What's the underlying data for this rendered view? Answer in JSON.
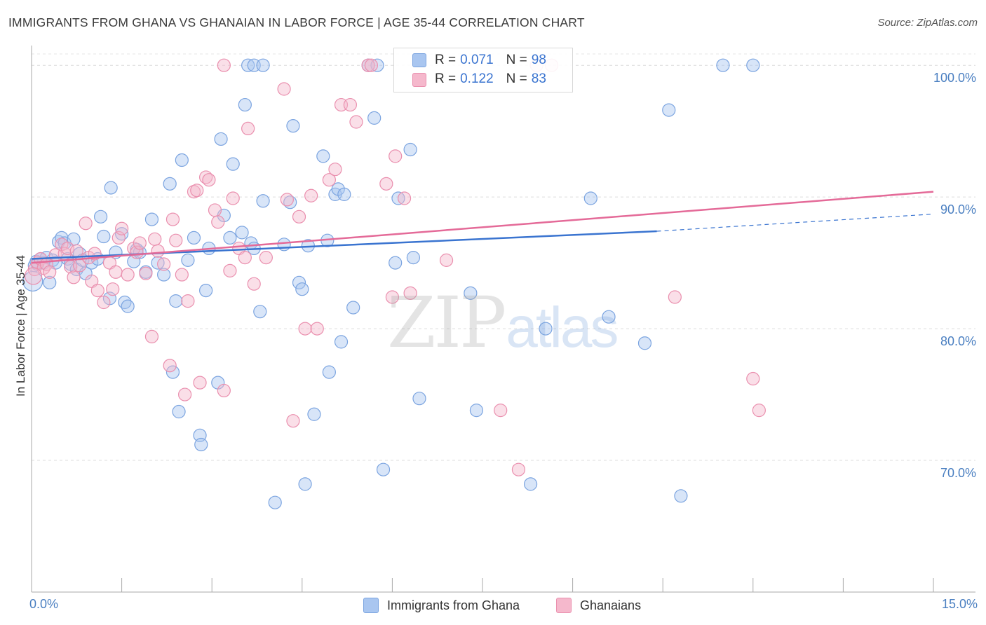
{
  "header": {
    "title": "IMMIGRANTS FROM GHANA VS GHANAIAN IN LABOR FORCE | AGE 35-44 CORRELATION CHART",
    "source": "Source: ZipAtlas.com"
  },
  "watermark": {
    "zip": "ZIP",
    "atlas": "atlas"
  },
  "legend_top": {
    "rows": [
      {
        "r_label": "R = ",
        "r_value": "0.071",
        "n_label": "N = ",
        "n_value": "98"
      },
      {
        "r_label": "R = ",
        "r_value": "0.122",
        "n_label": "N = ",
        "n_value": "83"
      }
    ]
  },
  "legend_bottom": {
    "items": [
      {
        "label": "Immigrants from Ghana"
      },
      {
        "label": "Ghanaians"
      }
    ]
  },
  "colors": {
    "blue_fill": "#a9c6f0",
    "blue_stroke": "#7ba4e0",
    "blue_line": "#3a74d0",
    "pink_fill": "#f5b8cc",
    "pink_stroke": "#ea8fae",
    "pink_line": "#e46a98",
    "grid": "#d9d9d9",
    "axis_label": "#4a7fc1"
  },
  "chart_data": {
    "type": "scatter",
    "title": "IMMIGRANTS FROM GHANA VS GHANAIAN IN LABOR FORCE | AGE 35-44 CORRELATION CHART",
    "xlabel": "",
    "ylabel": "In Labor Force | Age 35-44",
    "xlim": [
      0,
      15
    ],
    "ylim": [
      60,
      101.5
    ],
    "x_tick_labels": [
      "0.0%",
      "15.0%"
    ],
    "y_ticks": [
      70,
      80,
      90,
      100
    ],
    "y_tick_labels": [
      "70.0%",
      "80.0%",
      "90.0%",
      "100.0%"
    ],
    "grid": true,
    "legend_position": "top-center",
    "series": [
      {
        "name": "Immigrants from Ghana",
        "color": "#a9c6f0",
        "trend": {
          "x": [
            0,
            10.4
          ],
          "y": [
            85.3,
            87.4
          ],
          "extended_to": [
            15,
            88.7
          ]
        },
        "points": [
          [
            0.05,
            84.8
          ],
          [
            0.08,
            85.1
          ],
          [
            0.1,
            84.9
          ],
          [
            0.15,
            85.3
          ],
          [
            0.2,
            85.0
          ],
          [
            0.25,
            85.4
          ],
          [
            0.3,
            83.5
          ],
          [
            0.35,
            85.2
          ],
          [
            0.4,
            85.0
          ],
          [
            0.45,
            86.6
          ],
          [
            0.5,
            86.9
          ],
          [
            0.55,
            86.5
          ],
          [
            0.6,
            85.3
          ],
          [
            0.65,
            84.9
          ],
          [
            0.7,
            86.8
          ],
          [
            0.75,
            84.5
          ],
          [
            0.8,
            85.7
          ],
          [
            0.85,
            85.2
          ],
          [
            0.9,
            84.2
          ],
          [
            1.0,
            85.0
          ],
          [
            1.1,
            85.3
          ],
          [
            1.15,
            88.5
          ],
          [
            1.2,
            87.0
          ],
          [
            1.3,
            82.3
          ],
          [
            1.32,
            90.7
          ],
          [
            1.4,
            85.8
          ],
          [
            1.5,
            87.2
          ],
          [
            1.55,
            82.0
          ],
          [
            1.6,
            81.7
          ],
          [
            1.7,
            85.1
          ],
          [
            1.75,
            86.0
          ],
          [
            1.8,
            85.8
          ],
          [
            1.9,
            84.3
          ],
          [
            2.0,
            88.3
          ],
          [
            2.1,
            85.0
          ],
          [
            2.2,
            84.1
          ],
          [
            2.3,
            91.0
          ],
          [
            2.4,
            82.1
          ],
          [
            2.35,
            76.7
          ],
          [
            2.45,
            73.7
          ],
          [
            2.5,
            92.8
          ],
          [
            2.6,
            85.2
          ],
          [
            2.7,
            86.9
          ],
          [
            2.8,
            71.9
          ],
          [
            2.82,
            71.2
          ],
          [
            2.9,
            82.9
          ],
          [
            2.95,
            86.1
          ],
          [
            3.1,
            75.9
          ],
          [
            3.15,
            94.4
          ],
          [
            3.2,
            88.6
          ],
          [
            3.3,
            86.9
          ],
          [
            3.35,
            92.5
          ],
          [
            3.5,
            87.3
          ],
          [
            3.55,
            97.0
          ],
          [
            3.65,
            86.5
          ],
          [
            3.7,
            86.1
          ],
          [
            3.8,
            81.3
          ],
          [
            3.85,
            89.7
          ],
          [
            4.05,
            66.8
          ],
          [
            4.2,
            86.4
          ],
          [
            4.3,
            89.6
          ],
          [
            4.35,
            95.4
          ],
          [
            4.45,
            83.5
          ],
          [
            4.5,
            83.0
          ],
          [
            4.6,
            86.3
          ],
          [
            4.7,
            73.5
          ],
          [
            4.85,
            93.1
          ],
          [
            4.92,
            86.7
          ],
          [
            4.95,
            76.7
          ],
          [
            5.05,
            90.2
          ],
          [
            5.1,
            90.6
          ],
          [
            5.2,
            90.2
          ],
          [
            5.35,
            81.6
          ],
          [
            5.6,
            100.0
          ],
          [
            5.7,
            96.0
          ],
          [
            5.75,
            100.0
          ],
          [
            5.85,
            69.3
          ],
          [
            6.05,
            85.0
          ],
          [
            6.1,
            89.9
          ],
          [
            6.3,
            93.6
          ],
          [
            6.35,
            85.4
          ],
          [
            6.45,
            74.7
          ],
          [
            7.3,
            82.7
          ],
          [
            7.4,
            73.8
          ],
          [
            8.3,
            68.2
          ],
          [
            8.55,
            80.0
          ],
          [
            9.3,
            89.9
          ],
          [
            9.6,
            80.9
          ],
          [
            10.2,
            78.9
          ],
          [
            10.6,
            96.6
          ],
          [
            10.8,
            67.3
          ],
          [
            11.5,
            100.0
          ],
          [
            12.0,
            100.0
          ],
          [
            3.6,
            100.0
          ],
          [
            3.7,
            100.0
          ],
          [
            3.85,
            100.0
          ],
          [
            4.55,
            68.2
          ],
          [
            5.15,
            79.0
          ]
        ]
      },
      {
        "name": "Ghanaians",
        "color": "#f5b8cc",
        "trend": {
          "x": [
            0,
            15
          ],
          "y": [
            85.0,
            90.4
          ]
        },
        "points": [
          [
            0.05,
            84.5
          ],
          [
            0.1,
            85.0
          ],
          [
            0.15,
            85.3
          ],
          [
            0.2,
            84.6
          ],
          [
            0.25,
            84.9
          ],
          [
            0.3,
            84.3
          ],
          [
            0.4,
            85.6
          ],
          [
            0.5,
            86.4
          ],
          [
            0.55,
            85.7
          ],
          [
            0.6,
            86.1
          ],
          [
            0.65,
            84.7
          ],
          [
            0.7,
            83.9
          ],
          [
            0.75,
            85.9
          ],
          [
            0.8,
            84.8
          ],
          [
            0.9,
            88.0
          ],
          [
            0.95,
            85.4
          ],
          [
            1.0,
            83.6
          ],
          [
            1.05,
            85.7
          ],
          [
            1.1,
            82.9
          ],
          [
            1.2,
            82.0
          ],
          [
            1.3,
            85.0
          ],
          [
            1.35,
            83.0
          ],
          [
            1.4,
            84.3
          ],
          [
            1.45,
            86.9
          ],
          [
            1.5,
            87.6
          ],
          [
            1.6,
            84.1
          ],
          [
            1.7,
            86.1
          ],
          [
            1.75,
            85.8
          ],
          [
            1.8,
            86.5
          ],
          [
            1.9,
            84.2
          ],
          [
            2.0,
            79.4
          ],
          [
            2.05,
            86.8
          ],
          [
            2.1,
            85.9
          ],
          [
            2.2,
            84.9
          ],
          [
            2.3,
            77.2
          ],
          [
            2.35,
            88.3
          ],
          [
            2.4,
            86.7
          ],
          [
            2.5,
            84.1
          ],
          [
            2.55,
            75.0
          ],
          [
            2.6,
            82.1
          ],
          [
            2.7,
            90.4
          ],
          [
            2.75,
            90.5
          ],
          [
            2.8,
            75.9
          ],
          [
            2.9,
            91.5
          ],
          [
            2.95,
            91.3
          ],
          [
            3.05,
            89.0
          ],
          [
            3.1,
            88.1
          ],
          [
            3.2,
            75.3
          ],
          [
            3.3,
            84.4
          ],
          [
            3.35,
            89.9
          ],
          [
            3.45,
            86.1
          ],
          [
            3.55,
            85.4
          ],
          [
            3.6,
            95.2
          ],
          [
            3.7,
            83.4
          ],
          [
            3.9,
            85.4
          ],
          [
            4.2,
            98.2
          ],
          [
            4.25,
            89.8
          ],
          [
            4.35,
            73.0
          ],
          [
            4.45,
            88.5
          ],
          [
            4.55,
            80.0
          ],
          [
            4.65,
            90.1
          ],
          [
            4.75,
            80.0
          ],
          [
            4.95,
            91.3
          ],
          [
            5.05,
            92.1
          ],
          [
            5.15,
            97.0
          ],
          [
            5.3,
            97.0
          ],
          [
            5.4,
            95.7
          ],
          [
            5.6,
            100.0
          ],
          [
            5.65,
            100.0
          ],
          [
            5.9,
            91.0
          ],
          [
            6.0,
            82.4
          ],
          [
            6.05,
            93.1
          ],
          [
            6.2,
            89.9
          ],
          [
            6.3,
            82.7
          ],
          [
            6.9,
            85.2
          ],
          [
            7.8,
            73.8
          ],
          [
            8.1,
            69.3
          ],
          [
            8.4,
            100.0
          ],
          [
            8.65,
            100.0
          ],
          [
            10.7,
            82.4
          ],
          [
            12.0,
            76.2
          ],
          [
            12.1,
            73.8
          ],
          [
            3.2,
            100.0
          ]
        ]
      }
    ]
  }
}
